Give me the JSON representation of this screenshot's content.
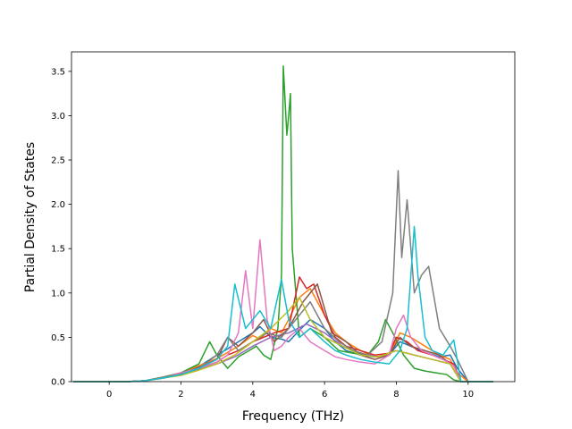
{
  "chart_data": {
    "type": "line",
    "title": "",
    "xlabel": "Frequency (THz)",
    "ylabel": "Partial Density of States",
    "xlim": [
      -1.05,
      11.3
    ],
    "ylim": [
      0,
      3.72
    ],
    "xticks": [
      0,
      2,
      4,
      6,
      8,
      10
    ],
    "yticks": [
      0.0,
      0.5,
      1.0,
      1.5,
      2.0,
      2.5,
      3.0,
      3.5
    ],
    "xtick_labels": [
      "0",
      "2",
      "4",
      "6",
      "8",
      "10"
    ],
    "ytick_labels": [
      "0.0",
      "0.5",
      "1.0",
      "1.5",
      "2.0",
      "2.5",
      "3.0",
      "3.5"
    ],
    "grid": false,
    "legend": "none",
    "series": [
      {
        "color": "#1f77b4",
        "x": [
          -1.0,
          0.0,
          0.5,
          1.0,
          1.5,
          2.0,
          2.5,
          3.0,
          3.3,
          3.6,
          4.0,
          4.2,
          4.5,
          4.8,
          5.0,
          5.3,
          5.6,
          6.0,
          6.3,
          6.6,
          7.0,
          7.4,
          7.8,
          8.1,
          8.4,
          8.8,
          9.2,
          9.5,
          9.7,
          10.0,
          10.7
        ],
        "y": [
          0.0,
          0.0,
          0.0,
          0.01,
          0.04,
          0.08,
          0.17,
          0.3,
          0.37,
          0.45,
          0.55,
          0.62,
          0.5,
          0.48,
          0.45,
          0.58,
          0.7,
          0.6,
          0.45,
          0.35,
          0.3,
          0.28,
          0.3,
          0.45,
          0.4,
          0.33,
          0.28,
          0.3,
          0.15,
          0.0,
          0.0
        ]
      },
      {
        "color": "#ff7f0e",
        "x": [
          -1.0,
          0.0,
          0.5,
          1.0,
          1.5,
          2.0,
          2.5,
          3.0,
          3.3,
          3.6,
          4.0,
          4.2,
          4.5,
          4.8,
          5.0,
          5.3,
          5.6,
          6.0,
          6.3,
          6.6,
          7.0,
          7.4,
          7.8,
          8.1,
          8.4,
          8.8,
          9.2,
          9.5,
          9.7,
          10.0,
          10.7
        ],
        "y": [
          0.0,
          0.0,
          0.0,
          0.01,
          0.05,
          0.1,
          0.18,
          0.26,
          0.33,
          0.4,
          0.52,
          0.48,
          0.6,
          0.55,
          0.7,
          0.95,
          1.05,
          0.75,
          0.55,
          0.45,
          0.35,
          0.28,
          0.3,
          0.55,
          0.5,
          0.4,
          0.3,
          0.25,
          0.1,
          0.0,
          0.0
        ]
      },
      {
        "color": "#2ca02c",
        "x": [
          -1.0,
          0.0,
          0.5,
          1.0,
          1.5,
          2.0,
          2.5,
          2.8,
          3.0,
          3.3,
          3.6,
          3.9,
          4.1,
          4.3,
          4.5,
          4.7,
          4.8,
          4.85,
          4.95,
          5.0,
          5.05,
          5.1,
          5.3,
          5.6,
          6.0,
          6.4,
          6.8,
          7.2,
          7.5,
          7.7,
          7.9,
          8.2,
          8.5,
          8.8,
          9.1,
          9.4,
          9.6,
          9.8,
          10.7
        ],
        "y": [
          0.0,
          0.0,
          0.0,
          0.01,
          0.05,
          0.1,
          0.2,
          0.45,
          0.3,
          0.15,
          0.28,
          0.35,
          0.4,
          0.3,
          0.25,
          0.6,
          1.2,
          3.56,
          2.78,
          3.0,
          3.25,
          1.5,
          0.5,
          0.6,
          0.5,
          0.35,
          0.32,
          0.3,
          0.45,
          0.7,
          0.55,
          0.3,
          0.15,
          0.12,
          0.1,
          0.08,
          0.02,
          0.0,
          0.0
        ]
      },
      {
        "color": "#d62728",
        "x": [
          -1.0,
          0.0,
          0.5,
          1.0,
          1.5,
          2.0,
          2.5,
          3.0,
          3.3,
          3.6,
          4.0,
          4.3,
          4.6,
          5.0,
          5.3,
          5.5,
          5.7,
          6.0,
          6.3,
          6.6,
          7.0,
          7.4,
          7.8,
          8.0,
          8.3,
          8.6,
          9.0,
          9.3,
          9.6,
          9.8,
          10.7
        ],
        "y": [
          0.0,
          0.0,
          0.0,
          0.01,
          0.04,
          0.08,
          0.15,
          0.22,
          0.3,
          0.35,
          0.45,
          0.5,
          0.55,
          0.6,
          1.18,
          1.05,
          1.1,
          0.75,
          0.5,
          0.4,
          0.35,
          0.3,
          0.32,
          0.5,
          0.45,
          0.35,
          0.3,
          0.25,
          0.2,
          0.0,
          0.0
        ]
      },
      {
        "color": "#9467bd",
        "x": [
          -1.0,
          0.0,
          0.5,
          1.0,
          1.5,
          2.0,
          2.5,
          3.0,
          3.5,
          4.0,
          4.5,
          5.0,
          5.5,
          6.0,
          6.5,
          7.0,
          7.5,
          8.0,
          8.5,
          9.0,
          9.5,
          9.8,
          10.7
        ],
        "y": [
          0.0,
          0.0,
          0.0,
          0.01,
          0.04,
          0.08,
          0.14,
          0.2,
          0.28,
          0.4,
          0.5,
          0.55,
          0.65,
          0.55,
          0.4,
          0.32,
          0.28,
          0.35,
          0.3,
          0.25,
          0.2,
          0.0,
          0.0
        ]
      },
      {
        "color": "#8c564b",
        "x": [
          -1.0,
          0.0,
          0.5,
          1.0,
          1.5,
          2.0,
          2.5,
          3.0,
          3.3,
          3.6,
          4.0,
          4.3,
          4.6,
          5.0,
          5.4,
          5.8,
          6.2,
          6.6,
          7.0,
          7.4,
          7.8,
          8.1,
          8.4,
          8.8,
          9.2,
          9.5,
          9.8,
          10.7
        ],
        "y": [
          0.0,
          0.0,
          0.0,
          0.01,
          0.05,
          0.09,
          0.16,
          0.25,
          0.5,
          0.4,
          0.55,
          0.7,
          0.45,
          0.6,
          0.9,
          1.1,
          0.55,
          0.45,
          0.3,
          0.25,
          0.3,
          0.5,
          0.4,
          0.35,
          0.3,
          0.2,
          0.0,
          0.0
        ]
      },
      {
        "color": "#e377c2",
        "x": [
          -1.0,
          0.0,
          0.5,
          1.0,
          1.5,
          2.0,
          2.5,
          3.0,
          3.3,
          3.6,
          3.8,
          4.0,
          4.2,
          4.4,
          4.6,
          4.8,
          5.0,
          5.3,
          5.6,
          6.0,
          6.3,
          6.6,
          7.0,
          7.4,
          7.8,
          8.0,
          8.2,
          8.4,
          8.7,
          9.0,
          9.3,
          9.6,
          9.8,
          10.7
        ],
        "y": [
          0.0,
          0.0,
          0.0,
          0.01,
          0.04,
          0.1,
          0.15,
          0.22,
          0.3,
          0.55,
          1.25,
          0.6,
          1.6,
          0.7,
          0.35,
          0.4,
          0.5,
          0.6,
          0.45,
          0.35,
          0.28,
          0.25,
          0.22,
          0.2,
          0.3,
          0.6,
          0.75,
          0.5,
          0.35,
          0.3,
          0.25,
          0.18,
          0.0,
          0.0
        ]
      },
      {
        "color": "#7f7f7f",
        "x": [
          -1.0,
          0.0,
          0.5,
          1.0,
          1.5,
          2.0,
          2.5,
          3.0,
          3.3,
          3.6,
          4.0,
          4.4,
          4.8,
          5.2,
          5.6,
          6.0,
          6.4,
          6.8,
          7.2,
          7.6,
          7.9,
          8.05,
          8.15,
          8.3,
          8.5,
          8.7,
          8.9,
          9.2,
          9.5,
          9.7,
          10.0,
          10.7
        ],
        "y": [
          0.0,
          0.0,
          0.0,
          0.01,
          0.05,
          0.08,
          0.15,
          0.3,
          0.5,
          0.35,
          0.45,
          0.55,
          0.5,
          0.7,
          0.9,
          0.6,
          0.45,
          0.35,
          0.3,
          0.45,
          1.0,
          2.38,
          1.4,
          2.05,
          1.0,
          1.2,
          1.3,
          0.6,
          0.4,
          0.25,
          0.0,
          0.0
        ]
      },
      {
        "color": "#bcbd22",
        "x": [
          -1.0,
          0.0,
          0.5,
          1.0,
          1.5,
          2.0,
          2.5,
          3.0,
          3.5,
          4.0,
          4.5,
          5.0,
          5.3,
          5.6,
          6.0,
          6.5,
          7.0,
          7.5,
          8.0,
          8.5,
          9.0,
          9.5,
          9.8,
          10.7
        ],
        "y": [
          0.0,
          0.0,
          0.0,
          0.01,
          0.04,
          0.07,
          0.13,
          0.2,
          0.3,
          0.45,
          0.6,
          0.8,
          0.95,
          0.7,
          0.5,
          0.4,
          0.3,
          0.28,
          0.35,
          0.3,
          0.25,
          0.2,
          0.0,
          0.0
        ]
      },
      {
        "color": "#17becf",
        "x": [
          -1.0,
          0.0,
          0.5,
          1.0,
          1.5,
          2.0,
          2.5,
          3.0,
          3.3,
          3.5,
          3.8,
          4.0,
          4.2,
          4.5,
          4.8,
          5.0,
          5.3,
          5.6,
          6.0,
          6.3,
          6.6,
          7.0,
          7.4,
          7.8,
          8.1,
          8.3,
          8.5,
          8.6,
          8.8,
          9.0,
          9.3,
          9.6,
          9.8,
          10.7
        ],
        "y": [
          0.0,
          0.0,
          0.0,
          0.01,
          0.04,
          0.08,
          0.15,
          0.25,
          0.4,
          1.1,
          0.6,
          0.7,
          0.8,
          0.6,
          1.15,
          0.7,
          0.5,
          0.6,
          0.45,
          0.35,
          0.3,
          0.25,
          0.22,
          0.2,
          0.35,
          0.6,
          1.75,
          1.2,
          0.5,
          0.35,
          0.3,
          0.47,
          0.0,
          0.0
        ]
      }
    ]
  }
}
